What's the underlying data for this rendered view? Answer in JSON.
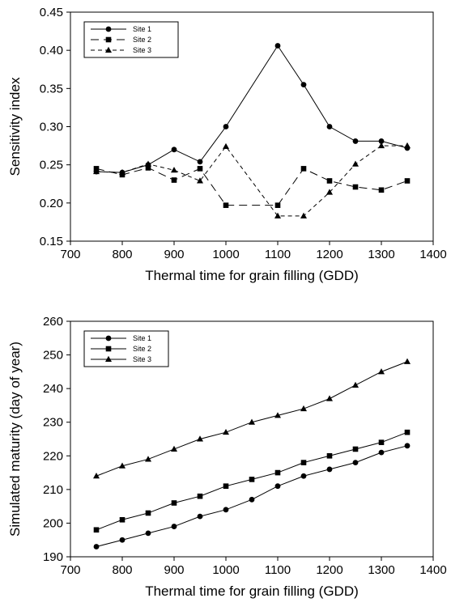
{
  "chart_data": [
    {
      "type": "line",
      "title": "",
      "xlabel": "Thermal time for grain filling (GDD)",
      "ylabel": "Sensitivity index",
      "xlim": [
        700,
        1400
      ],
      "ylim": [
        0.15,
        0.45
      ],
      "xticks": [
        "700",
        "800",
        "900",
        "1000",
        "1100",
        "1200",
        "1300",
        "1400"
      ],
      "yticks": [
        "0.15",
        "0.20",
        "0.25",
        "0.30",
        "0.35",
        "0.40",
        "0.45"
      ],
      "grid": false,
      "legend_position": "top-left",
      "x": [
        750,
        800,
        850,
        900,
        950,
        1000,
        1100,
        1150,
        1200,
        1250,
        1300,
        1350
      ],
      "series": [
        {
          "name": "Site 1",
          "marker": "circle",
          "dash": "solid",
          "values": [
            0.241,
            0.24,
            0.25,
            0.27,
            0.254,
            0.3,
            0.406,
            0.355,
            0.3,
            0.281,
            0.281,
            0.272
          ]
        },
        {
          "name": "Site 2",
          "marker": "square",
          "dash": "long-dash",
          "values": [
            0.245,
            0.237,
            0.246,
            0.23,
            0.245,
            0.197,
            0.197,
            0.245,
            0.229,
            0.221,
            0.217,
            0.229
          ]
        },
        {
          "name": "Site 3",
          "marker": "triangle",
          "dash": "short-dash",
          "values": [
            0.241,
            0.24,
            0.251,
            0.243,
            0.229,
            0.274,
            0.183,
            0.183,
            0.214,
            0.251,
            0.275,
            0.275
          ]
        }
      ]
    },
    {
      "type": "line",
      "title": "",
      "xlabel": "Thermal time for grain filling (GDD)",
      "ylabel": "Simulated maturity (day of year)",
      "xlim": [
        700,
        1400
      ],
      "ylim": [
        190,
        260
      ],
      "xticks": [
        "700",
        "800",
        "900",
        "1000",
        "1100",
        "1200",
        "1300",
        "1400"
      ],
      "yticks": [
        "190",
        "200",
        "210",
        "220",
        "230",
        "240",
        "250",
        "260"
      ],
      "grid": false,
      "legend_position": "top-left",
      "x": [
        750,
        800,
        850,
        900,
        950,
        1000,
        1050,
        1100,
        1150,
        1200,
        1250,
        1300,
        1350
      ],
      "series": [
        {
          "name": "Site 1",
          "marker": "circle",
          "dash": "solid",
          "values": [
            193,
            195,
            197,
            199,
            202,
            204,
            207,
            211,
            214,
            216,
            218,
            221,
            223
          ]
        },
        {
          "name": "Site 2",
          "marker": "square",
          "dash": "solid",
          "values": [
            198,
            201,
            203,
            206,
            208,
            211,
            213,
            215,
            218,
            220,
            222,
            224,
            227
          ]
        },
        {
          "name": "Site 3",
          "marker": "triangle",
          "dash": "solid",
          "values": [
            214,
            217,
            219,
            222,
            225,
            227,
            230,
            232,
            234,
            237,
            241,
            245,
            248
          ]
        }
      ]
    }
  ]
}
